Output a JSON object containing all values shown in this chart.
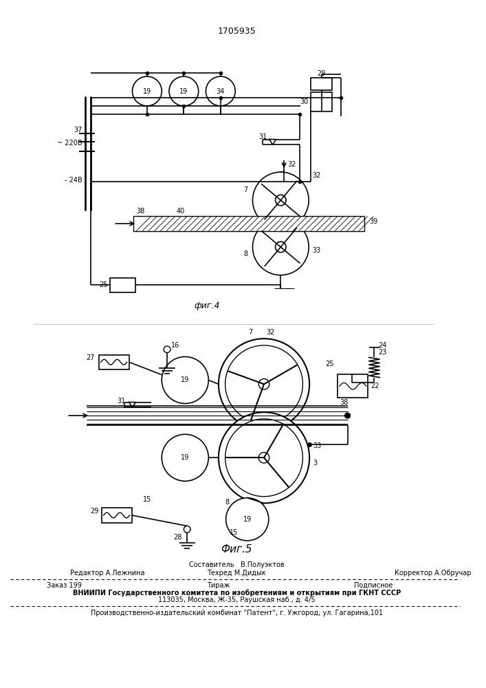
{
  "patent_number": "1705935",
  "fig4_label": "фиг.4",
  "fig5_label": "Фиг.5",
  "footer_line1": "Составитель   В.Полуэктов",
  "footer_editor": "Редактор А.Лежнина",
  "footer_tech": "Техред М.Дидык",
  "footer_corr": "Корректор А.Обручар",
  "footer_order": "Заказ 199",
  "footer_tir": "Тираж",
  "footer_sub": "Подписное",
  "footer_vniip": "ВНИИПИ Государственного комитета по изобретениям и открытиям при ГКНТ СССР",
  "footer_addr": "113035, Москва, Ж-35, Раушская наб., д. 4/5",
  "footer_patent": "Производственно-издательский комбинат \"Патент\", г. Ужгород, ул. Гагарина,101",
  "bg_color": "#ffffff"
}
